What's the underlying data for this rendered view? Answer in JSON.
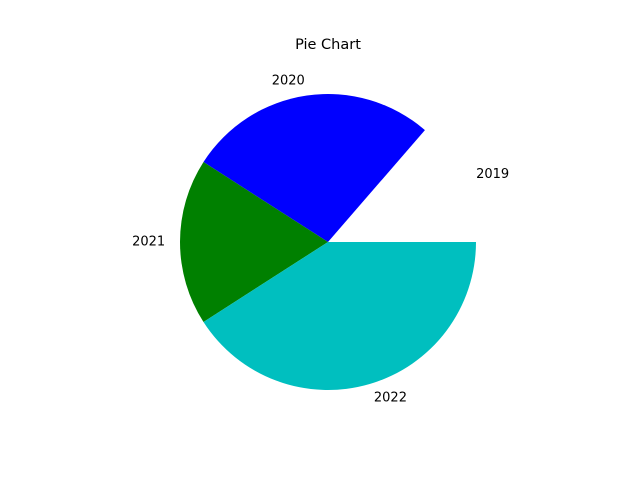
{
  "chart_data": {
    "type": "pie",
    "title": "Pie Chart",
    "labels": [
      "2019",
      "2020",
      "2021",
      "2022"
    ],
    "values": [
      15,
      30,
      20,
      45
    ],
    "colors": [
      "#ffffff",
      "#0000ff",
      "#008000",
      "#00bfbf"
    ],
    "start_angle_deg": 0,
    "direction": "counterclockwise",
    "legend": "none"
  }
}
